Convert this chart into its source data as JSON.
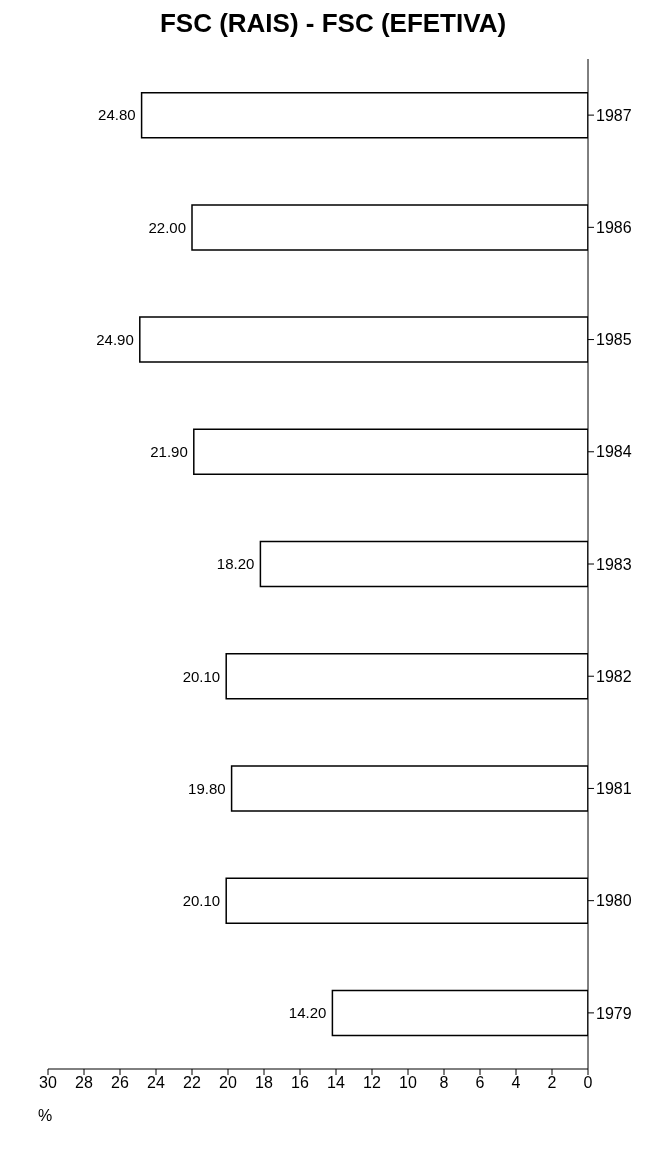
{
  "chart_data": {
    "type": "bar",
    "title": "FSC (RAIS) - FSC (EFETIVA)",
    "xlabel": "%",
    "orientation": "horizontal",
    "categories": [
      "1987",
      "1986",
      "1985",
      "1984",
      "1983",
      "1982",
      "1981",
      "1980",
      "1979"
    ],
    "values": [
      24.8,
      22.0,
      24.9,
      21.9,
      18.2,
      20.1,
      19.8,
      20.1,
      14.2
    ],
    "value_labels": [
      "24.80",
      "22.00",
      "24.90",
      "21.90",
      "18.20",
      "20.10",
      "19.80",
      "20.10",
      "14.20"
    ],
    "color": "#ffffff",
    "xlim": [
      30,
      0
    ],
    "xticks": [
      30,
      28,
      26,
      24,
      22,
      20,
      18,
      16,
      14,
      12,
      10,
      8,
      6,
      4,
      2,
      0
    ],
    "data_labels": false
  }
}
